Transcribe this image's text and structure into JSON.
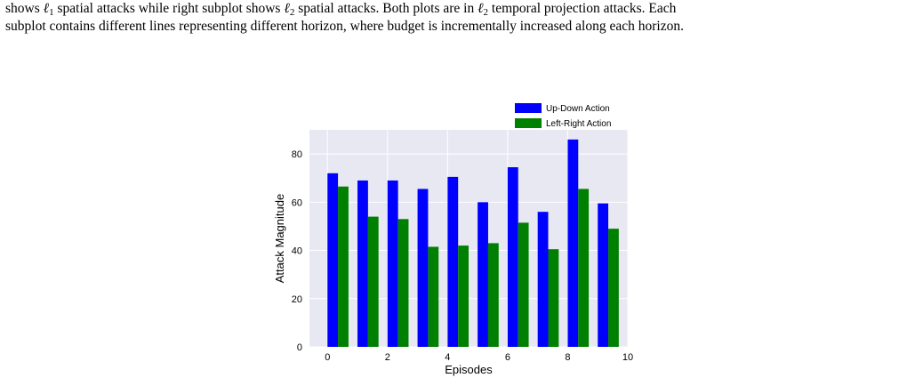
{
  "caption": {
    "line1": {
      "pre": "shows ",
      "sym_a": "ℓ",
      "sub_a": "1",
      "mid": " spatial attacks while right subplot shows ",
      "sym_b": "ℓ",
      "sub_b": "2",
      "mid2": " spatial attacks. Both plots are in ",
      "sym_c": "ℓ",
      "sub_c": "2",
      "post": " temporal projection attacks. Each"
    },
    "line2": "subplot contains different lines representing different horizon, where budget is incrementally increased along each horizon."
  },
  "chart_data": {
    "type": "bar",
    "x": [
      0,
      1,
      2,
      3,
      4,
      5,
      6,
      7,
      8,
      9
    ],
    "xlabel": "Episodes",
    "ylabel": "Attack Magnitude",
    "xlim": [
      -0.6,
      10
    ],
    "ylim": [
      0,
      90
    ],
    "xticks": [
      0,
      2,
      4,
      6,
      8,
      10
    ],
    "yticks": [
      0,
      20,
      40,
      60,
      80
    ],
    "grid": true,
    "legend_position": "top-right-outside",
    "series": [
      {
        "name": "Up-Down Action",
        "color": "#0000ff",
        "values": [
          72,
          69,
          69,
          65.5,
          70.5,
          60,
          74.5,
          56,
          86,
          59.5
        ]
      },
      {
        "name": "Left-Right Action",
        "color": "#008000",
        "values": [
          66.5,
          54,
          53,
          41.5,
          42,
          43,
          51.5,
          40.5,
          65.5,
          49
        ]
      }
    ]
  }
}
